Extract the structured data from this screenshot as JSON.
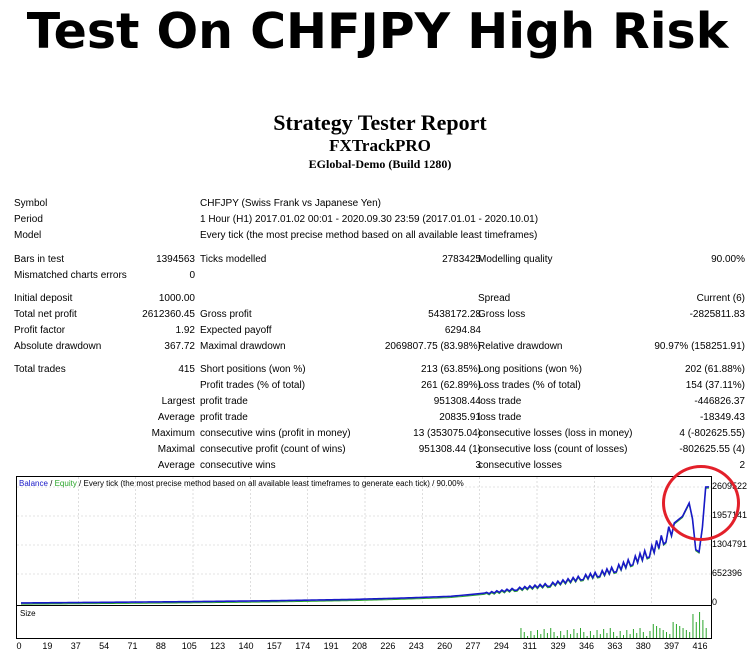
{
  "headline": "Test On CHFJPY High Risk",
  "report": {
    "title": "Strategy Tester Report",
    "ea": "FXTrackPRO",
    "server": "EGlobal-Demo (Build 1280)"
  },
  "info": {
    "symbol_label": "Symbol",
    "symbol": "CHFJPY (Swiss Frank vs Japanese Yen)",
    "period_label": "Period",
    "period": "1 Hour (H1) 2017.01.02 00:01 - 2020.09.30 23:59 (2017.01.01 - 2020.10.01)",
    "model_label": "Model",
    "model": "Every tick (the most precise method based on all available least timeframes)"
  },
  "stats": {
    "bars_label": "Bars in test",
    "bars": "1394563",
    "ticks_label": "Ticks modelled",
    "ticks": "2783425",
    "quality_label": "Modelling quality",
    "quality": "90.00%",
    "mismatched_label": "Mismatched charts errors",
    "mismatched": "0",
    "deposit_label": "Initial deposit",
    "deposit": "1000.00",
    "spread_label": "Spread",
    "spread": "Current (6)",
    "netprofit_label": "Total net profit",
    "netprofit": "2612360.45",
    "grossprofit_label": "Gross profit",
    "grossprofit": "5438172.28",
    "grossloss_label": "Gross loss",
    "grossloss": "-2825811.83",
    "pf_label": "Profit factor",
    "pf": "1.92",
    "payoff_label": "Expected payoff",
    "payoff": "6294.84",
    "absdd_label": "Absolute drawdown",
    "absdd": "367.72",
    "maxdd_label": "Maximal drawdown",
    "maxdd": "2069807.75 (83.98%)",
    "reldd_label": "Relative drawdown",
    "reldd": "90.97% (158251.91)",
    "trades_label": "Total trades",
    "trades": "415",
    "short_label": "Short positions (won %)",
    "short": "213 (63.85%)",
    "long_label": "Long positions (won %)",
    "long": "202 (61.88%)",
    "ptrades_label": "Profit trades (% of total)",
    "ptrades": "261 (62.89%)",
    "ltrades_label": "Loss trades (% of total)",
    "ltrades": "154 (37.11%)",
    "largest_label": "Largest",
    "lp_label": "profit trade",
    "lp": "951308.44",
    "ll_label": "loss trade",
    "ll": "-446826.37",
    "average_label": "Average",
    "ap_label": "profit trade",
    "ap": "20835.91",
    "al_label": "loss trade",
    "al": "-18349.43",
    "maximum_label": "Maximum",
    "mcw_label": "consecutive wins (profit in money)",
    "mcw": "13 (353075.04)",
    "mcl_label": "consecutive losses (loss in money)",
    "mcl": "4 (-802625.55)",
    "maximal_label": "Maximal",
    "mcp_label": "consecutive profit (count of wins)",
    "mcp": "951308.44 (1)",
    "mclo_label": "consecutive loss (count of losses)",
    "mclo": "-802625.55 (4)",
    "average2_label": "Average",
    "acw_label": "consecutive wins",
    "acw": "3",
    "acl_label": "consecutive losses",
    "acl": "2"
  },
  "chart": {
    "legend_balance": "Balance",
    "legend_sep": " / ",
    "legend_equity": "Equity",
    "legend_rest": " / Every tick (the most precise method based on all available least timeframes to generate each tick) / 90.00%",
    "size_label": "Size",
    "yticks": [
      "2609522",
      "1957141",
      "1304791",
      "652396",
      "0"
    ],
    "xticks": [
      "0",
      "19",
      "37",
      "54",
      "71",
      "88",
      "105",
      "123",
      "140",
      "157",
      "174",
      "191",
      "208",
      "226",
      "243",
      "260",
      "277",
      "294",
      "311",
      "329",
      "346",
      "363",
      "380",
      "397",
      "416"
    ],
    "colors": {
      "balance": "#1818c8",
      "equity": "#2aa52a",
      "circle": "#e3202a",
      "grid": "#c8c8c8"
    }
  },
  "chart_data": {
    "type": "line",
    "xlabel": "",
    "ylabel": "",
    "ylim": [
      0,
      2609522
    ],
    "xlim": [
      0,
      416
    ],
    "x": [
      0,
      50,
      100,
      150,
      200,
      230,
      260,
      280,
      300,
      320,
      340,
      350,
      360,
      370,
      380,
      390,
      395,
      400,
      404,
      406,
      408,
      410,
      412,
      414,
      416
    ],
    "series": [
      {
        "name": "Balance",
        "values": [
          1000,
          15000,
          30000,
          50000,
          80000,
          110000,
          150000,
          220000,
          330000,
          430000,
          600000,
          680000,
          800000,
          980000,
          1180000,
          1560000,
          1800000,
          1950000,
          2250000,
          1900000,
          1200000,
          1150000,
          1700000,
          2609522,
          2612360
        ]
      }
    ]
  }
}
